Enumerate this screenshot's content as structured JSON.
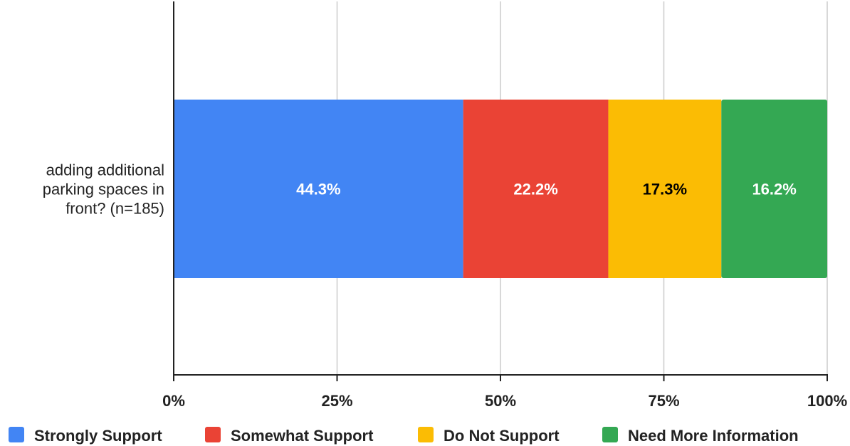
{
  "chart_data": {
    "type": "bar",
    "orientation": "horizontal",
    "stacking": "percent",
    "categories": [
      "adding additional parking spaces in front? (n=185)"
    ],
    "category_label_lines": [
      "adding additional",
      "parking spaces in",
      "front? (n=185)"
    ],
    "series": [
      {
        "name": "Strongly Support",
        "values": [
          44.3
        ],
        "label": "44.3%",
        "color": "#4285F4",
        "label_color": "#ffffff"
      },
      {
        "name": "Somewhat Support",
        "values": [
          22.2
        ],
        "label": "22.2%",
        "color": "#EA4335",
        "label_color": "#ffffff"
      },
      {
        "name": "Do Not Support",
        "values": [
          17.3
        ],
        "label": "17.3%",
        "color": "#FBBC04",
        "label_color": "#000000"
      },
      {
        "name": "Need More Information",
        "values": [
          16.2
        ],
        "label": "16.2%",
        "color": "#34A853",
        "label_color": "#ffffff"
      }
    ],
    "xlim": [
      0,
      100
    ],
    "x_ticks": [
      "0%",
      "25%",
      "50%",
      "75%",
      "100%"
    ],
    "grid": true,
    "legend_position": "bottom"
  }
}
